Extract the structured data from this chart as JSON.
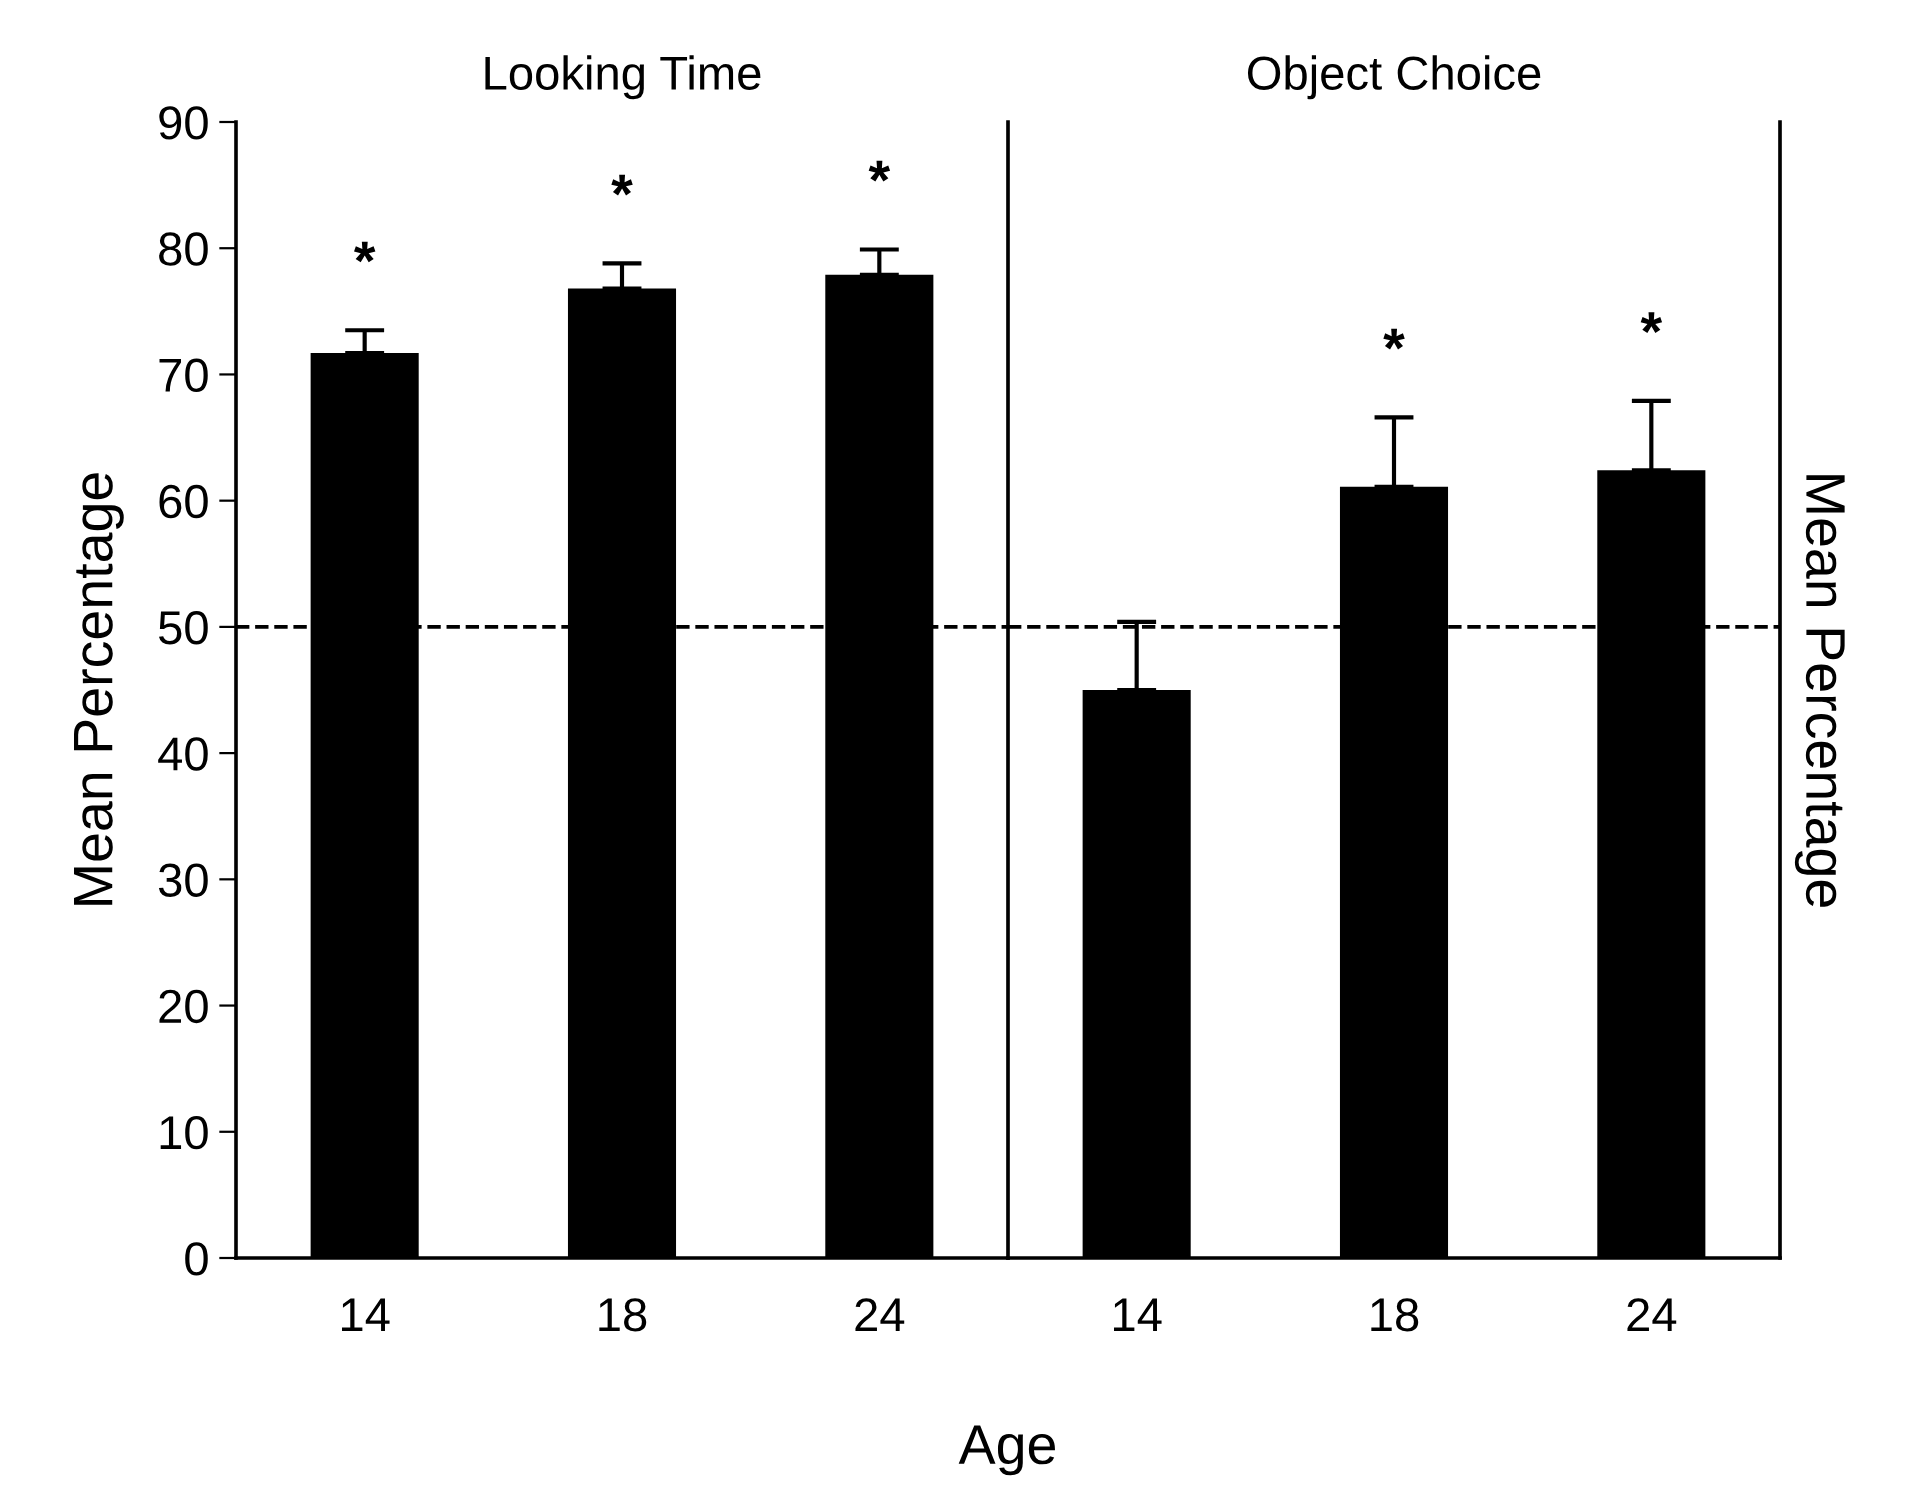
{
  "chart_data": [
    {
      "type": "bar",
      "title": "Looking Time",
      "xlabel": "Age",
      "ylabel": "Mean Percentage",
      "categories": [
        "14",
        "18",
        "24"
      ],
      "series": [
        {
          "color": "#000000",
          "values": [
            71.7,
            76.8,
            77.9
          ],
          "errors": [
            [
              71.7,
              73.5
            ],
            [
              76.8,
              78.8
            ],
            [
              77.9,
              79.9
            ]
          ],
          "value_labels": [
            "*",
            "*",
            "*"
          ]
        }
      ],
      "ylim": [
        0,
        90
      ],
      "yticks": [
        0,
        10,
        20,
        30,
        40,
        50,
        60,
        70,
        80,
        90
      ],
      "ref_lines": [
        {
          "axis": "y",
          "value": 50,
          "line_style": "dashed",
          "color": "#000000"
        }
      ],
      "grid": false,
      "legend": false
    },
    {
      "type": "bar",
      "title": "Object Choice",
      "y2label": "Mean Percentage",
      "categories": [
        "14",
        "18",
        "24"
      ],
      "series": [
        {
          "color": "#000000",
          "values": [
            45.0,
            61.1,
            62.4
          ],
          "errors": [
            [
              45.0,
              50.4
            ],
            [
              61.1,
              66.6
            ],
            [
              62.4,
              67.9
            ]
          ],
          "value_labels": [
            null,
            "*",
            "*"
          ]
        }
      ],
      "ylim": [
        0,
        90
      ],
      "yticks": [
        0,
        10,
        20,
        30,
        40,
        50,
        60,
        70,
        80,
        90
      ],
      "tick_labels": "x",
      "ref_lines": [
        {
          "axis": "y",
          "value": 50,
          "line_style": "dashed",
          "color": "#000000"
        }
      ],
      "grid": false,
      "legend": false
    }
  ]
}
